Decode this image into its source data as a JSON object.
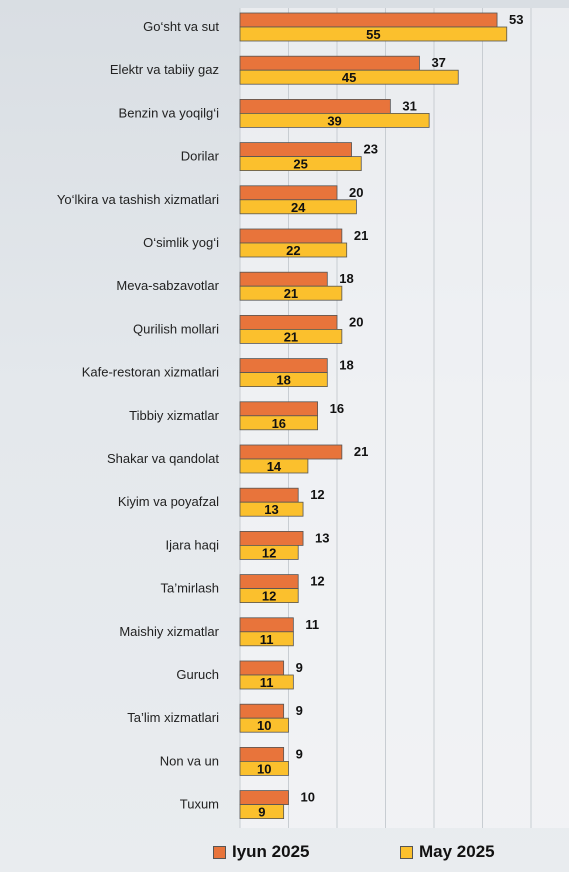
{
  "chart_data": {
    "type": "bar",
    "orientation": "horizontal",
    "categories": [
      "Go‘sht va sut",
      "Elektr va tabiiy gaz",
      "Benzin va yoqilg‘i",
      "Dorilar",
      "Yo‘lkira va tashish xizmatlari",
      "O‘simlik yog‘i",
      "Meva-sabzavotlar",
      "Qurilish mollari",
      "Kafe-restoran xizmatlari",
      "Tibbiy xizmatlar",
      "Shakar va qandolat",
      "Kiyim va poyafzal",
      "Ijara haqi",
      "Ta’mirlash",
      "Maishiy xizmatlar",
      "Guruch",
      "Ta’lim xizmatlari",
      "Non va un",
      "Tuxum"
    ],
    "series": [
      {
        "name": "Iyun 2025",
        "color": "#e8743b",
        "values": [
          53,
          37,
          31,
          23,
          20,
          21,
          18,
          20,
          18,
          16,
          21,
          12,
          13,
          12,
          11,
          9,
          9,
          9,
          10
        ]
      },
      {
        "name": "May 2025",
        "color": "#fbc02d",
        "values": [
          55,
          45,
          39,
          25,
          24,
          22,
          21,
          21,
          18,
          16,
          14,
          13,
          12,
          12,
          11,
          11,
          10,
          10,
          9
        ]
      }
    ],
    "xlim": [
      0,
      60
    ],
    "grid": true,
    "legend_position": "bottom"
  }
}
